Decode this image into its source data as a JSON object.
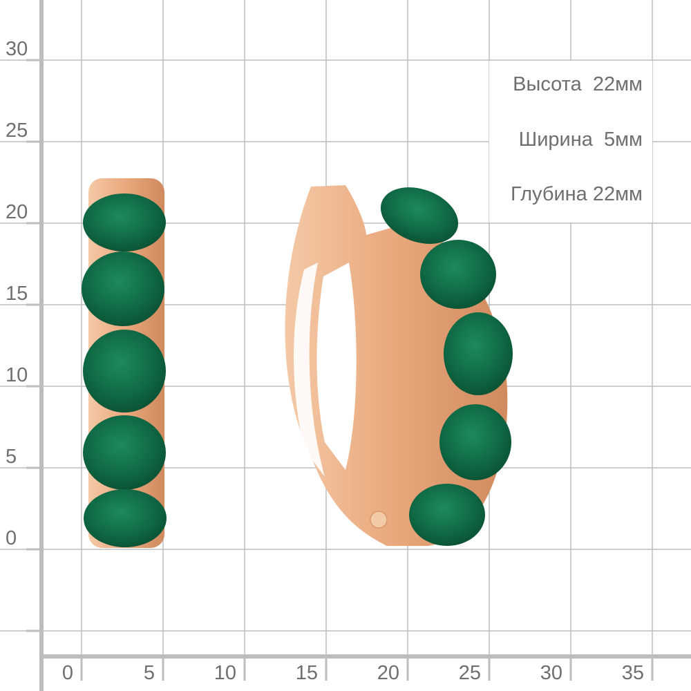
{
  "scale": {
    "unit": "мм",
    "y_ticks": [
      "0",
      "5",
      "10",
      "15",
      "20",
      "25",
      "30"
    ],
    "x_ticks": [
      "0",
      "5",
      "10",
      "15",
      "20",
      "25",
      "30",
      "35"
    ]
  },
  "dimensions": {
    "height": "Высота  22мм",
    "width": "Ширина  5мм",
    "depth": "Глубина 22мм"
  },
  "colors": {
    "grid": "#bdbdbd",
    "gold": "#e9a77c",
    "stone": "#0f6a45",
    "text": "#6f6f6f"
  },
  "product": {
    "type": "hoop earrings",
    "stones": "green agate",
    "stone_count_per_earring": 5
  }
}
